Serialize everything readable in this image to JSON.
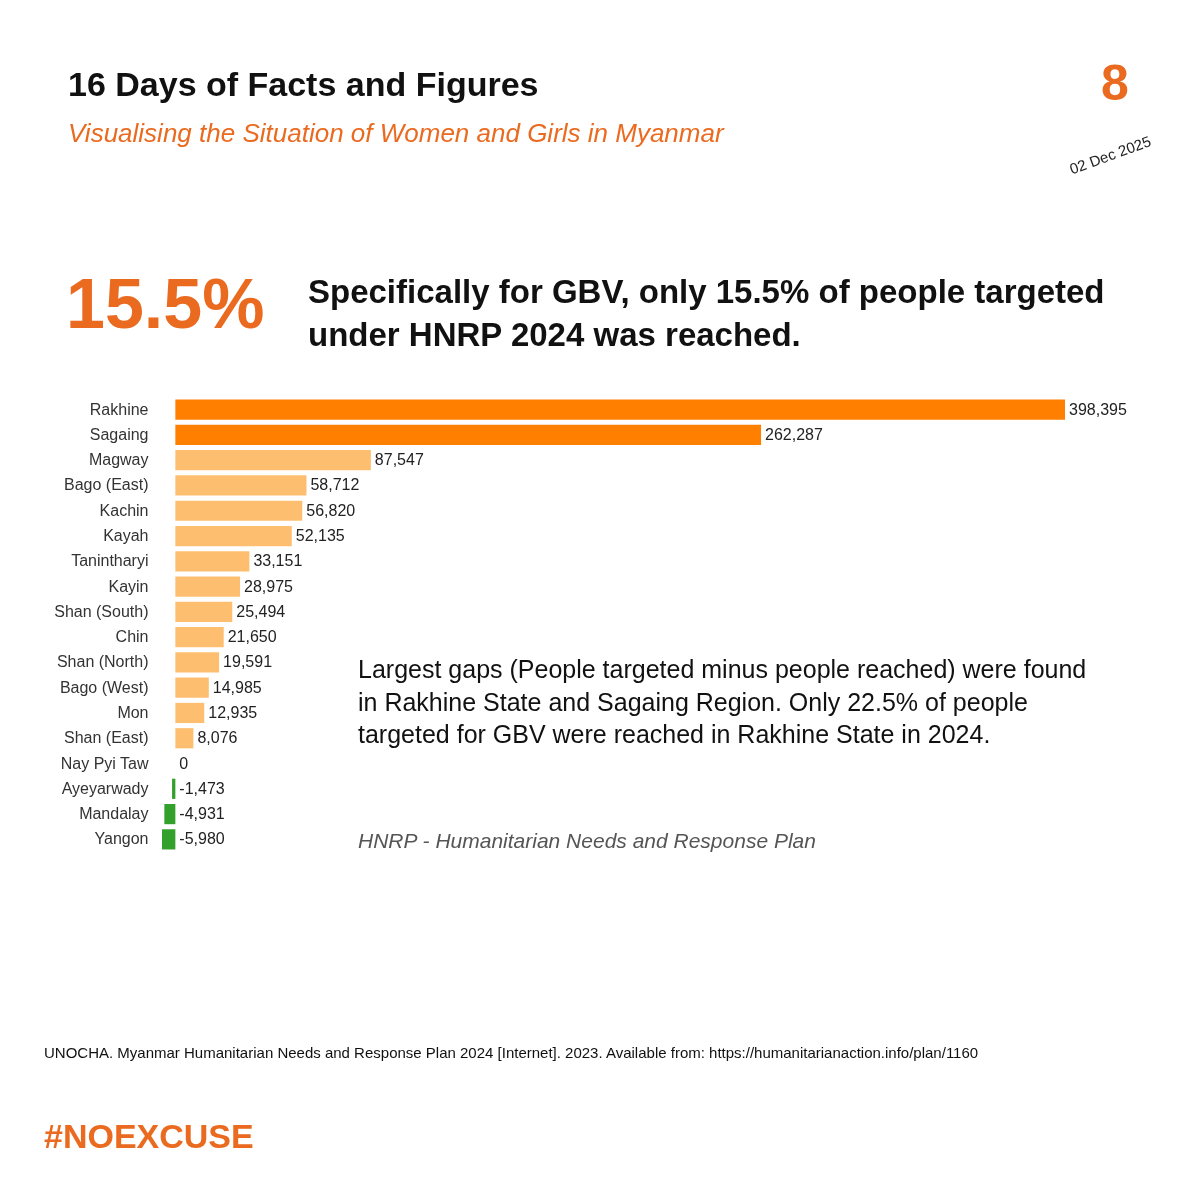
{
  "chart_data": {
    "type": "bar",
    "orientation": "horizontal",
    "title": "16 Days of Facts and Figures",
    "subtitle": "Visualising the Situation of Women and Girls in Myanmar",
    "categories": [
      "Rakhine",
      "Sagaing",
      "Magway",
      "Bago (East)",
      "Kachin",
      "Kayah",
      "Tanintharyi",
      "Kayin",
      "Shan (South)",
      "Chin",
      "Shan (North)",
      "Bago (West)",
      "Mon",
      "Shan (East)",
      "Nay Pyi Taw",
      "Ayeyarwady",
      "Mandalay",
      "Yangon"
    ],
    "values": [
      398395,
      262287,
      87547,
      58712,
      56820,
      52135,
      33151,
      28975,
      25494,
      21650,
      19591,
      14985,
      12935,
      8076,
      0,
      -1473,
      -4931,
      -5980
    ],
    "colors": [
      "#ff7f00",
      "#ff7f00",
      "#fdbf6f",
      "#fdbf6f",
      "#fdbf6f",
      "#fdbf6f",
      "#fdbf6f",
      "#fdbf6f",
      "#fdbf6f",
      "#fdbf6f",
      "#fdbf6f",
      "#fdbf6f",
      "#fdbf6f",
      "#fdbf6f",
      "#fdbf6f",
      "#33a02c",
      "#33a02c",
      "#33a02c"
    ],
    "value_labels": [
      "398,395",
      "262,287",
      "87,547",
      "58,712",
      "56,820",
      "52,135",
      "33,151",
      "28,975",
      "25,494",
      "21,650",
      "19,591",
      "14,985",
      "12,935",
      "8,076",
      "0",
      "-1,473",
      "-4,931",
      "-5,980"
    ],
    "tick_labels": "y",
    "annotations": [
      "8",
      "02 Dec 2025",
      "15.5%",
      "Specifically for GBV, only 15.5% of people targeted under HNRP 2024 was reached.",
      "Largest gaps (People targeted minus people reached) were found in Rakhine State and Sagaing Region. Only 22.5% of people targeted for GBV were reached in Rakhine State in 2024.",
      "HNRP - Humanitarian Needs and Response Plan",
      "UNOCHA. Myanmar Humanitarian Needs and Response Plan 2024 [Internet]. 2023. Available from: https://humanitarianaction.info/plan/1160",
      "#NOEXCUSE"
    ]
  }
}
